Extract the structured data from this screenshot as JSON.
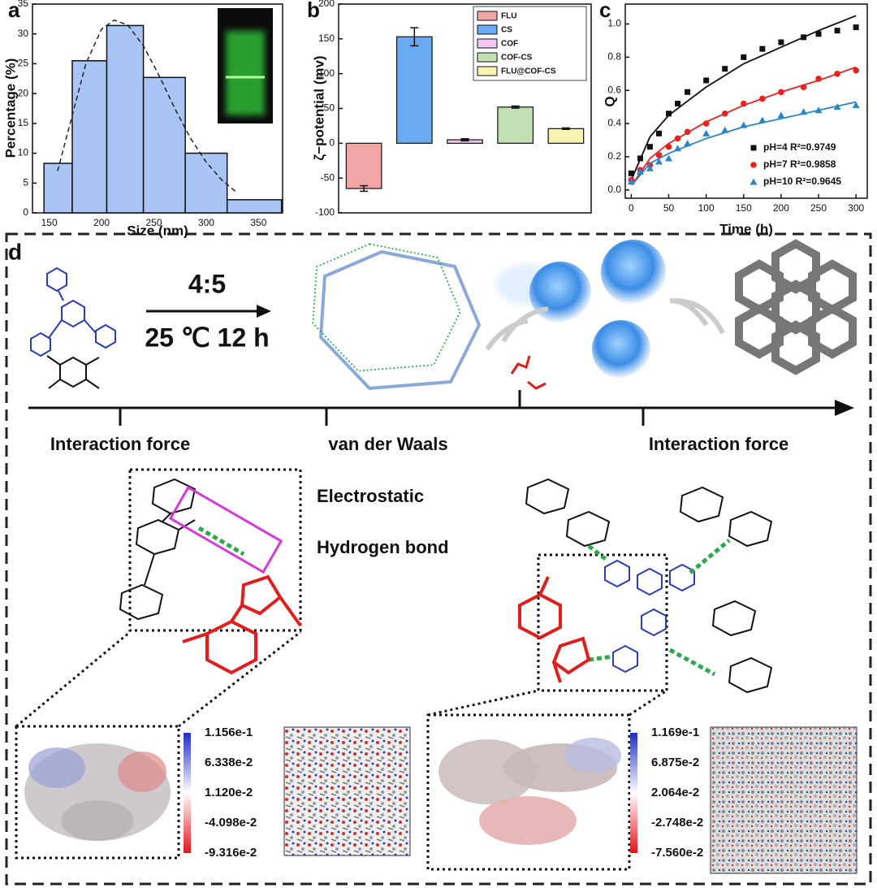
{
  "panel_labels": [
    "a",
    "b",
    "c",
    "d"
  ],
  "chart_data": [
    {
      "type": "histogram",
      "xlabel": "Size (nm)",
      "ylabel": "Percentage (%)",
      "bins": [
        145,
        172,
        205,
        240,
        280,
        320,
        372
      ],
      "values": [
        8.3,
        25.5,
        31.4,
        22.7,
        10,
        2.2
      ],
      "color": "#a9c4f5",
      "xlim": [
        134,
        373
      ],
      "xticks": [
        150,
        200,
        250,
        300,
        350
      ],
      "ylim": [
        0,
        35
      ],
      "yticks": [
        0,
        5,
        10,
        15,
        20,
        25,
        30,
        35
      ],
      "fit": {
        "x": [
          158,
          170,
          185,
          200,
          212,
          225,
          240,
          255,
          270,
          285,
          300,
          315,
          330
        ],
        "y": [
          7,
          15,
          25,
          30.8,
          32.3,
          31.5,
          28,
          23,
          17.5,
          12.5,
          8.5,
          5.5,
          3.3
        ]
      }
    },
    {
      "type": "bar",
      "ylabel": "ζ−potential (mv)",
      "categories": [
        "FLU",
        "CS",
        "COF",
        "COF-CS",
        "FLU@COF-CS"
      ],
      "values": [
        -65,
        153,
        5,
        52,
        21
      ],
      "errors": [
        4,
        13,
        1.5,
        1.5,
        1
      ],
      "colors": [
        "#f4a5a5",
        "#6aaaf0",
        "#f2c8f2",
        "#c2e0b4",
        "#f8f3b0"
      ],
      "ylim": [
        -100,
        200
      ],
      "yticks": [
        -100,
        -50,
        0,
        50,
        100,
        150,
        200
      ],
      "legend": "upper right"
    },
    {
      "type": "scatter",
      "xlabel": "Time (h)",
      "ylabel": "Q",
      "x": [
        0,
        12,
        25,
        37,
        50,
        62,
        75,
        100,
        125,
        150,
        175,
        200,
        230,
        250,
        275,
        300
      ],
      "xlim": [
        -8,
        315
      ],
      "xticks": [
        0,
        50,
        100,
        150,
        200,
        250,
        300
      ],
      "ylim": [
        -0.05,
        1.12
      ],
      "yticks": [
        {
          "value": 0,
          "label": "0.0"
        },
        {
          "value": 0.2,
          "label": "0.2"
        },
        {
          "value": 0.4,
          "label": "0.4"
        },
        {
          "value": 0.6,
          "label": "0.6"
        },
        {
          "value": 0.8,
          "label": "0.8"
        },
        {
          "value": 1,
          "label": "1.0"
        }
      ],
      "fit_x": [
        1,
        25,
        50,
        100,
        150,
        200,
        250,
        300
      ],
      "legend": "lower right",
      "series": [
        {
          "name": "pH=4 R²=0.9749",
          "color": "#111111",
          "marker": "square",
          "values": [
            0.1,
            0.19,
            0.26,
            0.34,
            0.46,
            0.52,
            0.59,
            0.66,
            0.73,
            0.8,
            0.85,
            0.89,
            0.92,
            0.94,
            0.96,
            0.98
          ],
          "fit": [
            0.07,
            0.32,
            0.45,
            0.62,
            0.76,
            0.86,
            0.96,
            1.05
          ]
        },
        {
          "name": "pH=7 R²=0.9858",
          "color": "#e8231f",
          "marker": "circle",
          "values": [
            0.06,
            0.12,
            0.15,
            0.21,
            0.26,
            0.31,
            0.35,
            0.4,
            0.46,
            0.52,
            0.55,
            0.59,
            0.62,
            0.67,
            0.7,
            0.72
          ],
          "fit": [
            0.03,
            0.19,
            0.28,
            0.41,
            0.51,
            0.59,
            0.66,
            0.74
          ]
        },
        {
          "name": "pH=10 R²=0.9645",
          "color": "#2a86c5",
          "marker": "triangle",
          "values": [
            0.05,
            0.11,
            0.13,
            0.17,
            0.19,
            0.25,
            0.28,
            0.34,
            0.36,
            0.39,
            0.42,
            0.45,
            0.47,
            0.48,
            0.5,
            0.51
          ],
          "fit": [
            0.03,
            0.16,
            0.22,
            0.31,
            0.38,
            0.43,
            0.48,
            0.53
          ]
        }
      ]
    }
  ],
  "panel_d": {
    "ratio": "4:5",
    "condition": "25 ℃ 12 h",
    "timeline": [
      "Interaction force",
      "van der Waals",
      "Interaction force"
    ],
    "forces": [
      "Electrostatic",
      "Hydrogen bond"
    ],
    "colorbars": [
      [
        "1.156e-1",
        "6.338e-2",
        "1.120e-2",
        "-4.098e-2",
        "-9.316e-2"
      ],
      [
        "1.169e-1",
        "6.875e-2",
        "2.064e-2",
        "-2.748e-2",
        "-7.560e-2"
      ]
    ]
  }
}
